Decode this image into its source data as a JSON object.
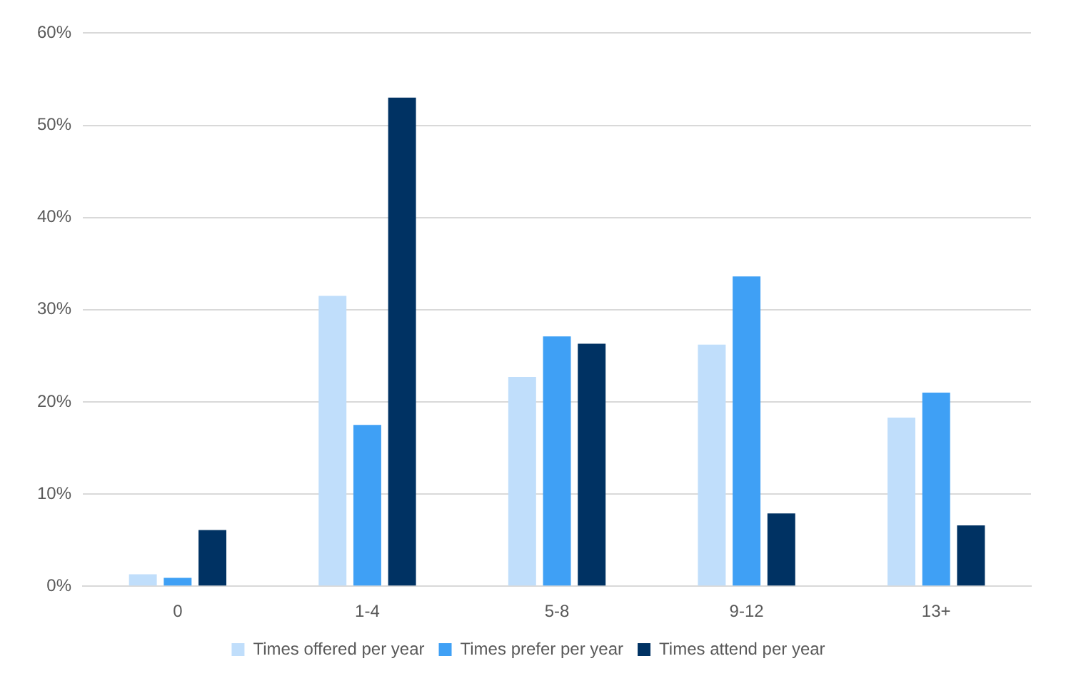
{
  "chart_data": {
    "type": "bar",
    "categories": [
      "0",
      "1-4",
      "5-8",
      "9-12",
      "13+"
    ],
    "series": [
      {
        "name": "Times offered per year",
        "color": "#c0defb",
        "values": [
          1.3,
          31.5,
          22.7,
          26.2,
          18.3
        ]
      },
      {
        "name": "Times prefer per year",
        "color": "#3fa0f5",
        "values": [
          0.9,
          17.5,
          27.1,
          33.6,
          21.0
        ]
      },
      {
        "name": "Times attend per year",
        "color": "#003263",
        "values": [
          6.1,
          53.0,
          26.3,
          7.9,
          6.6
        ]
      }
    ],
    "ylim": [
      0,
      60
    ],
    "yticks": [
      {
        "value": 0,
        "label": "0%"
      },
      {
        "value": 10,
        "label": "10%"
      },
      {
        "value": 20,
        "label": "20%"
      },
      {
        "value": 30,
        "label": "30%"
      },
      {
        "value": 40,
        "label": "40%"
      },
      {
        "value": 50,
        "label": "50%"
      },
      {
        "value": 60,
        "label": "60%"
      }
    ],
    "grid": "y",
    "legend": "bottom"
  }
}
